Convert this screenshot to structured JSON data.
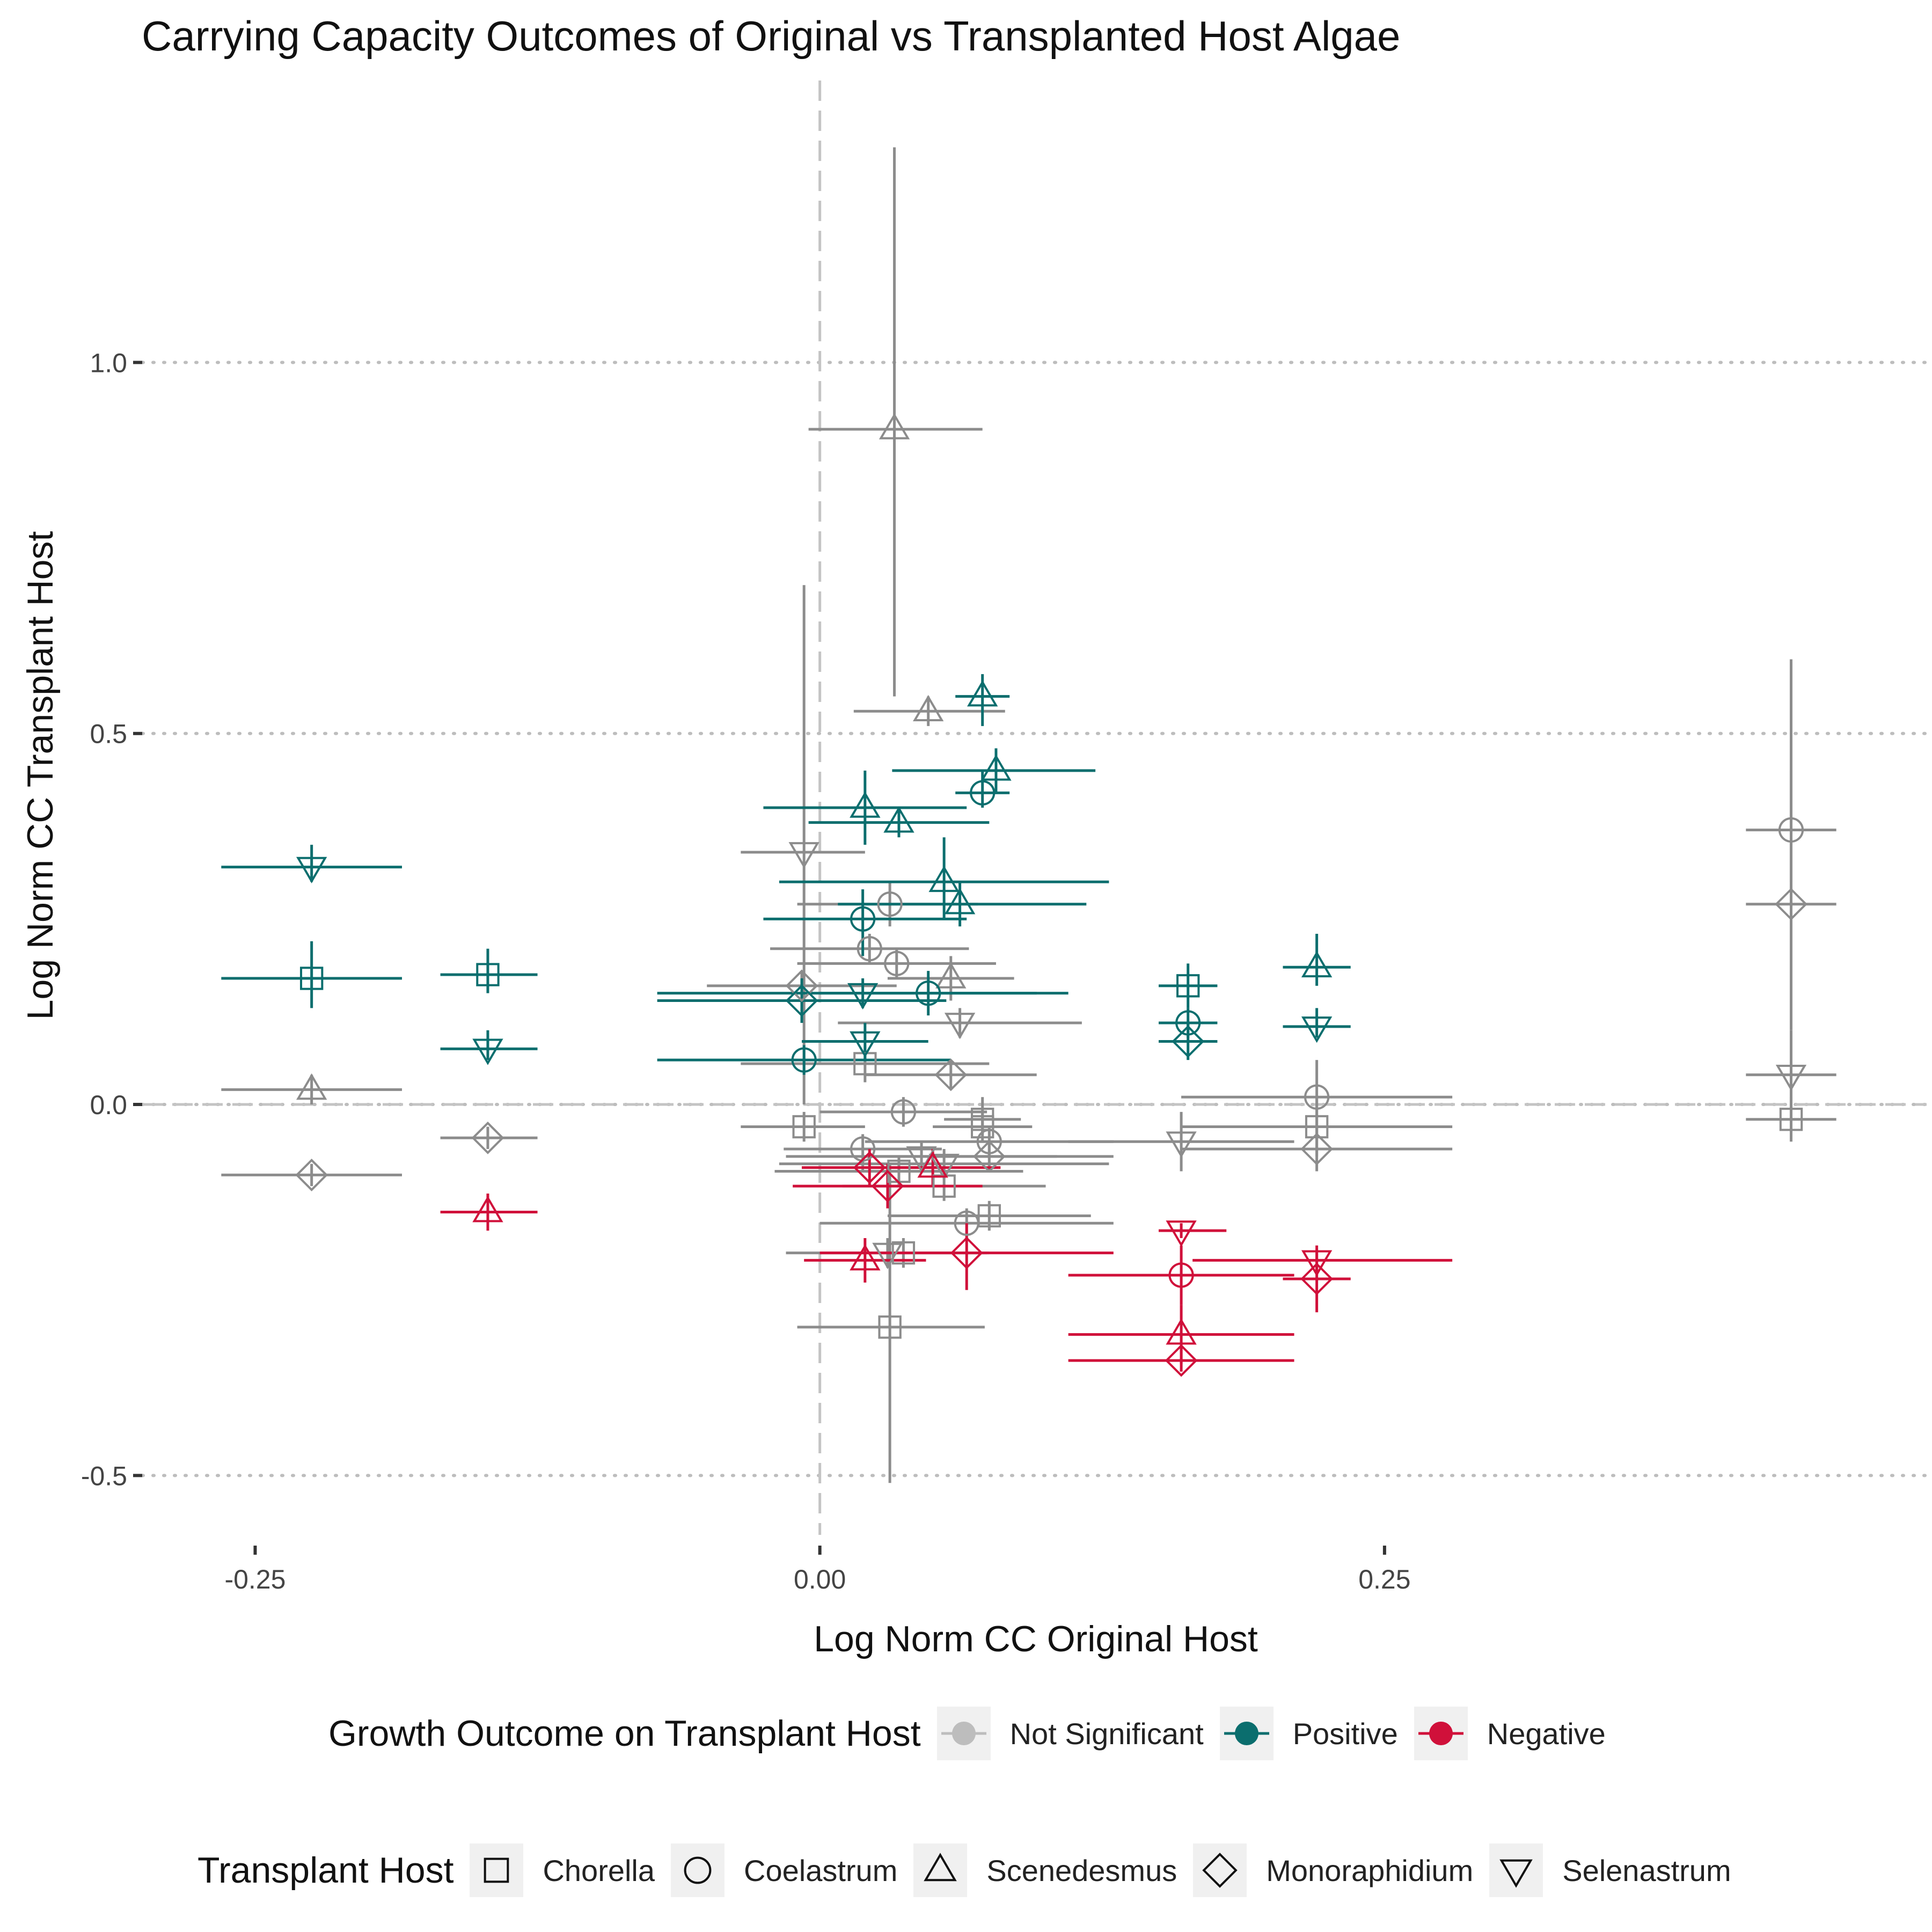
{
  "chart_data": {
    "type": "scatter",
    "title": "Carrying Capacity Outcomes of Original vs Transplanted Host Algae",
    "xlabel": "Log Norm CC Original Host",
    "ylabel": "Log Norm CC Transplant Host",
    "xlim": [
      -0.3,
      0.49
    ],
    "ylim": [
      -0.58,
      1.38
    ],
    "x_ticks": [
      -0.25,
      0.0,
      0.25
    ],
    "x_tick_labels": [
      "-0.25",
      "0.00",
      "0.25"
    ],
    "y_ticks": [
      -0.5,
      0.0,
      0.5,
      1.0
    ],
    "y_tick_labels": [
      "-0.5",
      "0.0",
      "0.5",
      "1.0"
    ],
    "grid": "horizontal dotted",
    "reference_lines": {
      "x": 0,
      "y": 0
    },
    "legend_placement": "bottom",
    "colors": {
      "Not Significant": "#8c8c8c",
      "Positive": "#0b6e6e",
      "Negative": "#d0103a"
    },
    "outcome_legend": {
      "title": "Growth Outcome on Transplant Host",
      "entries": [
        "Not Significant",
        "Positive",
        "Negative"
      ],
      "key_colors": [
        "#bdbdbd",
        "#0b6e6e",
        "#d0103a"
      ]
    },
    "host_legend": {
      "title": "Transplant Host",
      "entries": [
        "Chorella",
        "Coelastrum",
        "Scenedesmus",
        "Monoraphidium",
        "Selenastrum"
      ],
      "shapes": [
        "square",
        "circle",
        "triangle",
        "diamond",
        "triangle-down"
      ]
    },
    "points": [
      {
        "x": -0.225,
        "y": 0.17,
        "xmin": -0.265,
        "xmax": -0.185,
        "ymin": 0.13,
        "ymax": 0.22,
        "host": "Chorella",
        "outcome": "Positive"
      },
      {
        "x": -0.225,
        "y": 0.32,
        "xmin": -0.265,
        "xmax": -0.185,
        "ymin": 0.3,
        "ymax": 0.35,
        "host": "Selenastrum",
        "outcome": "Positive"
      },
      {
        "x": -0.225,
        "y": 0.02,
        "xmin": -0.265,
        "xmax": -0.185,
        "ymin": 0.0,
        "ymax": 0.04,
        "host": "Scenedesmus",
        "outcome": "Not Significant"
      },
      {
        "x": -0.225,
        "y": -0.095,
        "xmin": -0.265,
        "xmax": -0.185,
        "ymin": -0.11,
        "ymax": -0.08,
        "host": "Monoraphidium",
        "outcome": "Not Significant"
      },
      {
        "x": -0.147,
        "y": 0.175,
        "xmin": -0.168,
        "xmax": -0.125,
        "ymin": 0.15,
        "ymax": 0.21,
        "host": "Chorella",
        "outcome": "Positive"
      },
      {
        "x": -0.147,
        "y": 0.075,
        "xmin": -0.168,
        "xmax": -0.125,
        "ymin": 0.06,
        "ymax": 0.1,
        "host": "Selenastrum",
        "outcome": "Positive"
      },
      {
        "x": -0.147,
        "y": -0.045,
        "xmin": -0.168,
        "xmax": -0.125,
        "ymin": -0.06,
        "ymax": -0.03,
        "host": "Monoraphidium",
        "outcome": "Not Significant"
      },
      {
        "x": -0.147,
        "y": -0.145,
        "xmin": -0.168,
        "xmax": -0.125,
        "ymin": -0.17,
        "ymax": -0.12,
        "host": "Scenedesmus",
        "outcome": "Negative"
      },
      {
        "x": 0.033,
        "y": 0.91,
        "xmin": -0.005,
        "xmax": 0.072,
        "ymin": 0.55,
        "ymax": 1.29,
        "host": "Scenedesmus",
        "outcome": "Not Significant"
      },
      {
        "x": -0.007,
        "y": 0.34,
        "xmin": -0.035,
        "xmax": 0.02,
        "ymin": 0.0,
        "ymax": 0.7,
        "host": "Selenastrum",
        "outcome": "Not Significant"
      },
      {
        "x": 0.048,
        "y": 0.53,
        "xmin": 0.015,
        "xmax": 0.082,
        "ymin": 0.51,
        "ymax": 0.55,
        "host": "Scenedesmus",
        "outcome": "Not Significant"
      },
      {
        "x": 0.072,
        "y": 0.55,
        "xmin": 0.06,
        "xmax": 0.084,
        "ymin": 0.51,
        "ymax": 0.58,
        "host": "Scenedesmus",
        "outcome": "Positive"
      },
      {
        "x": 0.078,
        "y": 0.45,
        "xmin": 0.032,
        "xmax": 0.122,
        "ymin": 0.42,
        "ymax": 0.48,
        "host": "Scenedesmus",
        "outcome": "Positive"
      },
      {
        "x": 0.072,
        "y": 0.42,
        "xmin": 0.06,
        "xmax": 0.084,
        "ymin": 0.4,
        "ymax": 0.45,
        "host": "Coelastrum",
        "outcome": "Positive"
      },
      {
        "x": 0.02,
        "y": 0.4,
        "xmin": -0.025,
        "xmax": 0.065,
        "ymin": 0.35,
        "ymax": 0.45,
        "host": "Scenedesmus",
        "outcome": "Positive"
      },
      {
        "x": 0.035,
        "y": 0.38,
        "xmin": -0.005,
        "xmax": 0.075,
        "ymin": 0.36,
        "ymax": 0.4,
        "host": "Scenedesmus",
        "outcome": "Positive"
      },
      {
        "x": 0.055,
        "y": 0.3,
        "xmin": -0.018,
        "xmax": 0.128,
        "ymin": 0.25,
        "ymax": 0.36,
        "host": "Scenedesmus",
        "outcome": "Positive"
      },
      {
        "x": 0.062,
        "y": 0.27,
        "xmin": 0.008,
        "xmax": 0.118,
        "ymin": 0.24,
        "ymax": 0.3,
        "host": "Scenedesmus",
        "outcome": "Positive"
      },
      {
        "x": 0.031,
        "y": 0.27,
        "xmin": -0.01,
        "xmax": 0.07,
        "ymin": 0.24,
        "ymax": 0.3,
        "host": "Coelastrum",
        "outcome": "Not Significant"
      },
      {
        "x": 0.019,
        "y": 0.25,
        "xmin": -0.025,
        "xmax": 0.065,
        "ymin": 0.2,
        "ymax": 0.29,
        "host": "Coelastrum",
        "outcome": "Positive"
      },
      {
        "x": 0.022,
        "y": 0.21,
        "xmin": -0.022,
        "xmax": 0.066,
        "ymin": 0.19,
        "ymax": 0.23,
        "host": "Coelastrum",
        "outcome": "Not Significant"
      },
      {
        "x": 0.034,
        "y": 0.19,
        "xmin": -0.01,
        "xmax": 0.078,
        "ymin": 0.17,
        "ymax": 0.21,
        "host": "Coelastrum",
        "outcome": "Not Significant"
      },
      {
        "x": 0.058,
        "y": 0.17,
        "xmin": 0.03,
        "xmax": 0.086,
        "ymin": 0.14,
        "ymax": 0.2,
        "host": "Scenedesmus",
        "outcome": "Not Significant"
      },
      {
        "x": -0.008,
        "y": 0.16,
        "xmin": -0.05,
        "xmax": 0.034,
        "ymin": 0.14,
        "ymax": 0.18,
        "host": "Monoraphidium",
        "outcome": "Not Significant"
      },
      {
        "x": -0.008,
        "y": 0.14,
        "xmin": -0.072,
        "xmax": 0.056,
        "ymin": 0.11,
        "ymax": 0.17,
        "host": "Monoraphidium",
        "outcome": "Positive"
      },
      {
        "x": 0.019,
        "y": 0.15,
        "xmin": -0.072,
        "xmax": 0.11,
        "ymin": 0.13,
        "ymax": 0.17,
        "host": "Selenastrum",
        "outcome": "Positive"
      },
      {
        "x": 0.048,
        "y": 0.15,
        "xmin": 0.0,
        "xmax": 0.096,
        "ymin": 0.12,
        "ymax": 0.18,
        "host": "Coelastrum",
        "outcome": "Positive"
      },
      {
        "x": 0.062,
        "y": 0.11,
        "xmin": 0.008,
        "xmax": 0.116,
        "ymin": 0.09,
        "ymax": 0.13,
        "host": "Selenastrum",
        "outcome": "Not Significant"
      },
      {
        "x": 0.02,
        "y": 0.085,
        "xmin": -0.008,
        "xmax": 0.048,
        "ymin": 0.06,
        "ymax": 0.11,
        "host": "Selenastrum",
        "outcome": "Positive"
      },
      {
        "x": 0.02,
        "y": 0.055,
        "xmin": -0.035,
        "xmax": 0.075,
        "ymin": 0.03,
        "ymax": 0.08,
        "host": "Chorella",
        "outcome": "Not Significant"
      },
      {
        "x": -0.007,
        "y": 0.06,
        "xmin": -0.072,
        "xmax": 0.058,
        "ymin": 0.04,
        "ymax": 0.08,
        "host": "Coelastrum",
        "outcome": "Positive"
      },
      {
        "x": 0.058,
        "y": 0.04,
        "xmin": 0.02,
        "xmax": 0.096,
        "ymin": 0.02,
        "ymax": 0.06,
        "host": "Monoraphidium",
        "outcome": "Not Significant"
      },
      {
        "x": 0.037,
        "y": -0.01,
        "xmin": 0.0,
        "xmax": 0.074,
        "ymin": -0.03,
        "ymax": 0.01,
        "host": "Coelastrum",
        "outcome": "Not Significant"
      },
      {
        "x": -0.007,
        "y": -0.03,
        "xmin": -0.035,
        "xmax": 0.02,
        "ymin": -0.05,
        "ymax": -0.01,
        "host": "Chorella",
        "outcome": "Not Significant"
      },
      {
        "x": 0.072,
        "y": -0.02,
        "xmin": 0.055,
        "xmax": 0.089,
        "ymin": -0.04,
        "ymax": 0.01,
        "host": "Chorella",
        "outcome": "Not Significant"
      },
      {
        "x": 0.072,
        "y": -0.03,
        "xmin": 0.05,
        "xmax": 0.094,
        "ymin": -0.05,
        "ymax": -0.01,
        "host": "Chorella",
        "outcome": "Not Significant"
      },
      {
        "x": 0.019,
        "y": -0.06,
        "xmin": -0.016,
        "xmax": 0.054,
        "ymin": -0.09,
        "ymax": -0.04,
        "host": "Coelastrum",
        "outcome": "Not Significant"
      },
      {
        "x": 0.075,
        "y": -0.05,
        "xmin": 0.02,
        "xmax": 0.13,
        "ymin": -0.07,
        "ymax": -0.03,
        "host": "Coelastrum",
        "outcome": "Not Significant"
      },
      {
        "x": 0.075,
        "y": -0.07,
        "xmin": 0.02,
        "xmax": 0.13,
        "ymin": -0.09,
        "ymax": -0.05,
        "host": "Monoraphidium",
        "outcome": "Not Significant"
      },
      {
        "x": 0.045,
        "y": -0.07,
        "xmin": -0.015,
        "xmax": 0.105,
        "ymin": -0.09,
        "ymax": -0.05,
        "host": "Selenastrum",
        "outcome": "Not Significant"
      },
      {
        "x": 0.055,
        "y": -0.08,
        "xmin": -0.018,
        "xmax": 0.128,
        "ymin": -0.1,
        "ymax": -0.06,
        "host": "Selenastrum",
        "outcome": "Not Significant"
      },
      {
        "x": 0.035,
        "y": -0.09,
        "xmin": -0.02,
        "xmax": 0.09,
        "ymin": -0.11,
        "ymax": -0.07,
        "host": "Chorella",
        "outcome": "Not Significant"
      },
      {
        "x": 0.055,
        "y": -0.11,
        "xmin": 0.01,
        "xmax": 0.1,
        "ymin": -0.13,
        "ymax": -0.09,
        "host": "Chorella",
        "outcome": "Not Significant"
      },
      {
        "x": 0.075,
        "y": -0.15,
        "xmin": 0.03,
        "xmax": 0.12,
        "ymin": -0.17,
        "ymax": -0.13,
        "host": "Chorella",
        "outcome": "Not Significant"
      },
      {
        "x": 0.065,
        "y": -0.16,
        "xmin": 0.0,
        "xmax": 0.13,
        "ymin": -0.18,
        "ymax": -0.14,
        "host": "Coelastrum",
        "outcome": "Not Significant"
      },
      {
        "x": 0.03,
        "y": -0.2,
        "xmin": -0.015,
        "xmax": 0.075,
        "ymin": -0.22,
        "ymax": -0.18,
        "host": "Selenastrum",
        "outcome": "Not Significant"
      },
      {
        "x": 0.037,
        "y": -0.2,
        "xmin": 0.0,
        "xmax": 0.074,
        "ymin": -0.22,
        "ymax": -0.18,
        "host": "Chorella",
        "outcome": "Not Significant"
      },
      {
        "x": 0.031,
        "y": -0.3,
        "xmin": -0.01,
        "xmax": 0.073,
        "ymin": -0.51,
        "ymax": -0.08,
        "host": "Chorella",
        "outcome": "Not Significant"
      },
      {
        "x": 0.022,
        "y": -0.085,
        "xmin": -0.008,
        "xmax": 0.052,
        "ymin": -0.11,
        "ymax": -0.06,
        "host": "Monoraphidium",
        "outcome": "Negative"
      },
      {
        "x": 0.03,
        "y": -0.11,
        "xmin": -0.012,
        "xmax": 0.072,
        "ymin": -0.14,
        "ymax": -0.08,
        "host": "Monoraphidium",
        "outcome": "Negative"
      },
      {
        "x": 0.05,
        "y": -0.085,
        "xmin": 0.02,
        "xmax": 0.08,
        "ymin": -0.11,
        "ymax": -0.06,
        "host": "Scenedesmus",
        "outcome": "Negative"
      },
      {
        "x": 0.065,
        "y": -0.2,
        "xmin": 0.0,
        "xmax": 0.13,
        "ymin": -0.25,
        "ymax": -0.16,
        "host": "Monoraphidium",
        "outcome": "Negative"
      },
      {
        "x": 0.02,
        "y": -0.21,
        "xmin": -0.007,
        "xmax": 0.047,
        "ymin": -0.24,
        "ymax": -0.18,
        "host": "Scenedesmus",
        "outcome": "Negative"
      },
      {
        "x": 0.163,
        "y": 0.16,
        "xmin": 0.15,
        "xmax": 0.176,
        "ymin": 0.13,
        "ymax": 0.19,
        "host": "Chorella",
        "outcome": "Positive"
      },
      {
        "x": 0.163,
        "y": 0.11,
        "xmin": 0.15,
        "xmax": 0.176,
        "ymin": 0.09,
        "ymax": 0.13,
        "host": "Coelastrum",
        "outcome": "Positive"
      },
      {
        "x": 0.163,
        "y": 0.085,
        "xmin": 0.15,
        "xmax": 0.176,
        "ymin": 0.06,
        "ymax": 0.11,
        "host": "Monoraphidium",
        "outcome": "Positive"
      },
      {
        "x": 0.22,
        "y": 0.185,
        "xmin": 0.205,
        "xmax": 0.235,
        "ymin": 0.16,
        "ymax": 0.23,
        "host": "Scenedesmus",
        "outcome": "Positive"
      },
      {
        "x": 0.22,
        "y": 0.105,
        "xmin": 0.205,
        "xmax": 0.235,
        "ymin": 0.09,
        "ymax": 0.13,
        "host": "Selenastrum",
        "outcome": "Positive"
      },
      {
        "x": 0.22,
        "y": 0.01,
        "xmin": 0.16,
        "xmax": 0.28,
        "ymin": -0.04,
        "ymax": 0.06,
        "host": "Coelastrum",
        "outcome": "Not Significant"
      },
      {
        "x": 0.22,
        "y": -0.03,
        "xmin": 0.16,
        "xmax": 0.28,
        "ymin": -0.07,
        "ymax": 0.01,
        "host": "Chorella",
        "outcome": "Not Significant"
      },
      {
        "x": 0.22,
        "y": -0.06,
        "xmin": 0.16,
        "xmax": 0.28,
        "ymin": -0.09,
        "ymax": -0.03,
        "host": "Monoraphidium",
        "outcome": "Not Significant"
      },
      {
        "x": 0.16,
        "y": -0.05,
        "xmin": 0.11,
        "xmax": 0.21,
        "ymin": -0.09,
        "ymax": -0.01,
        "host": "Selenastrum",
        "outcome": "Not Significant"
      },
      {
        "x": 0.16,
        "y": -0.17,
        "xmin": 0.15,
        "xmax": 0.18,
        "ymin": -0.18,
        "ymax": -0.16,
        "host": "Selenastrum",
        "outcome": "Negative"
      },
      {
        "x": 0.16,
        "y": -0.23,
        "xmin": 0.11,
        "xmax": 0.21,
        "ymin": -0.27,
        "ymax": -0.19,
        "host": "Coelastrum",
        "outcome": "Negative"
      },
      {
        "x": 0.16,
        "y": -0.31,
        "xmin": 0.11,
        "xmax": 0.21,
        "ymin": -0.35,
        "ymax": -0.27,
        "host": "Scenedesmus",
        "outcome": "Negative"
      },
      {
        "x": 0.16,
        "y": -0.345,
        "xmin": 0.11,
        "xmax": 0.21,
        "ymin": -0.36,
        "ymax": -0.33,
        "host": "Monoraphidium",
        "outcome": "Negative"
      },
      {
        "x": 0.22,
        "y": -0.21,
        "xmin": 0.165,
        "xmax": 0.28,
        "ymin": -0.23,
        "ymax": -0.19,
        "host": "Selenastrum",
        "outcome": "Negative"
      },
      {
        "x": 0.22,
        "y": -0.235,
        "xmin": 0.205,
        "xmax": 0.235,
        "ymin": -0.28,
        "ymax": -0.2,
        "host": "Monoraphidium",
        "outcome": "Negative"
      },
      {
        "x": 0.43,
        "y": 0.37,
        "xmin": 0.41,
        "xmax": 0.45,
        "ymin": 0.3,
        "ymax": 0.6,
        "host": "Coelastrum",
        "outcome": "Not Significant"
      },
      {
        "x": 0.43,
        "y": 0.27,
        "xmin": 0.41,
        "xmax": 0.45,
        "ymin": 0.1,
        "ymax": 0.45,
        "host": "Monoraphidium",
        "outcome": "Not Significant"
      },
      {
        "x": 0.43,
        "y": 0.04,
        "xmin": 0.41,
        "xmax": 0.45,
        "ymin": -0.02,
        "ymax": 0.1,
        "host": "Selenastrum",
        "outcome": "Not Significant"
      },
      {
        "x": 0.43,
        "y": -0.02,
        "xmin": 0.41,
        "xmax": 0.45,
        "ymin": -0.05,
        "ymax": 0.01,
        "host": "Chorella",
        "outcome": "Not Significant"
      }
    ]
  }
}
